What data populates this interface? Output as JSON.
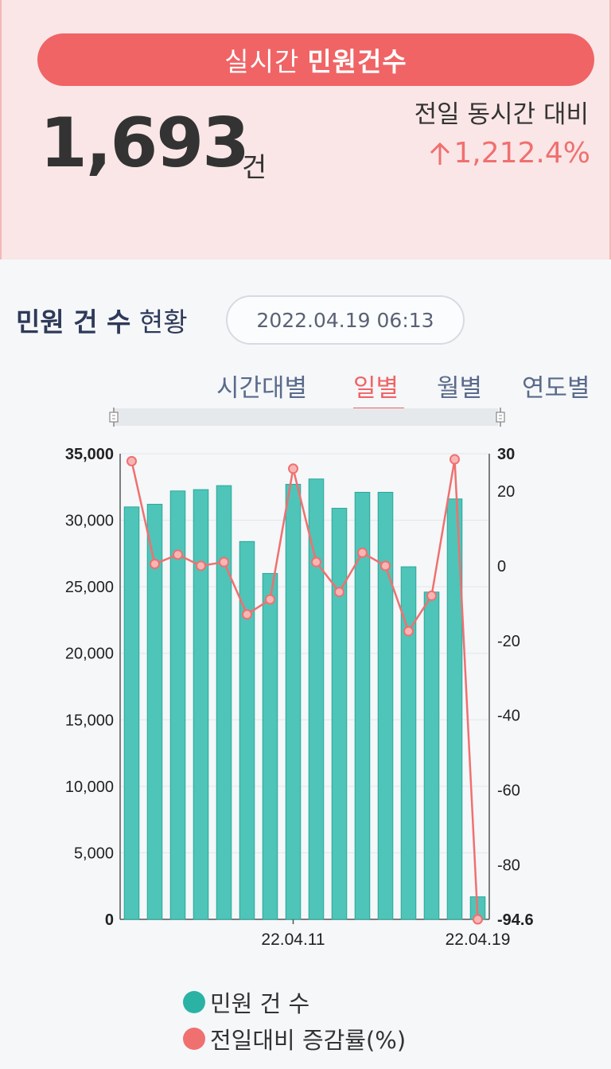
{
  "header": {
    "title_light": "실시간",
    "title_bold": "민원건수",
    "count": "1,693",
    "count_unit": "건",
    "compare_label": "전일 동시간 대비",
    "compare_value": "1,212.4%"
  },
  "section": {
    "title_bold": "민원 건 수",
    "title_light": "현황",
    "timestamp": "2022.04.19 06:13"
  },
  "tabs": [
    {
      "label": "시간대별",
      "active": false
    },
    {
      "label": "일별",
      "active": true
    },
    {
      "label": "월별",
      "active": false
    },
    {
      "label": "연도별",
      "active": false
    }
  ],
  "colors": {
    "accent": "#f06466",
    "bar": "#4fc4b8",
    "bar_border": "#2aa89b",
    "line": "#f07070"
  },
  "chart_data": {
    "type": "bar",
    "categories": [
      "",
      "",
      "",
      "",
      "",
      "",
      "",
      "22.04.11",
      "",
      "",
      "",
      "",
      "",
      "",
      "",
      "22.04.19"
    ],
    "series": [
      {
        "name": "민원 건 수",
        "type": "bar",
        "axis": "left",
        "values": [
          31000,
          31200,
          32200,
          32300,
          32600,
          28400,
          26000,
          32700,
          33100,
          30900,
          32100,
          32100,
          26500,
          24600,
          31600,
          1693
        ]
      },
      {
        "name": "전일대비 증감률(%)",
        "type": "line",
        "axis": "right",
        "values": [
          28,
          0.5,
          3,
          0,
          1,
          -13,
          -9,
          26,
          1,
          -7,
          3.5,
          0,
          -17.5,
          -8,
          28.5,
          -94.6
        ]
      }
    ],
    "left_axis": {
      "ylim": [
        0,
        35000
      ],
      "ticks": [
        "0",
        "5,000",
        "10,000",
        "15,000",
        "20,000",
        "25,000",
        "30,000",
        "35,000"
      ]
    },
    "right_axis": {
      "ylim": [
        -94.6,
        30
      ],
      "ticks": [
        "-94.6",
        "-80",
        "-60",
        "-40",
        "-20",
        "0",
        "20",
        "30"
      ]
    },
    "x_labels": [
      "22.04.11",
      "22.04.19"
    ],
    "legend": [
      "민원 건 수",
      "전일대비 증감률(%)"
    ]
  }
}
